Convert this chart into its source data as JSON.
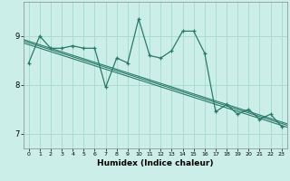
{
  "background_color": "#cceee8",
  "grid_color": "#aaddcc",
  "line_color": "#2a7a6a",
  "xlabel": "Humidex (Indice chaleur)",
  "xlim": [
    -0.5,
    23.5
  ],
  "ylim": [
    6.7,
    9.7
  ],
  "yticks": [
    7,
    8,
    9
  ],
  "xticks": [
    0,
    1,
    2,
    3,
    4,
    5,
    6,
    7,
    8,
    9,
    10,
    11,
    12,
    13,
    14,
    15,
    16,
    17,
    18,
    19,
    20,
    21,
    22,
    23
  ],
  "series1": {
    "x": [
      0,
      1,
      2,
      3,
      4,
      5,
      6,
      7,
      8,
      9,
      10,
      11,
      12,
      13,
      14,
      15,
      16,
      17,
      18,
      19,
      20,
      21,
      22,
      23
    ],
    "y": [
      8.45,
      9.0,
      8.75,
      8.75,
      8.8,
      8.75,
      8.75,
      7.95,
      8.55,
      8.45,
      9.35,
      8.6,
      8.55,
      8.7,
      9.1,
      9.1,
      8.65,
      7.45,
      7.6,
      7.4,
      7.5,
      7.3,
      7.4,
      7.15
    ]
  },
  "trend_lines": [
    {
      "x0": 2,
      "y0": 8.75,
      "x1": 18,
      "y1": 7.6
    },
    {
      "x0": 2,
      "y0": 8.72,
      "x1": 18,
      "y1": 7.57
    },
    {
      "x0": 2,
      "y0": 8.68,
      "x1": 18,
      "y1": 7.53
    }
  ]
}
